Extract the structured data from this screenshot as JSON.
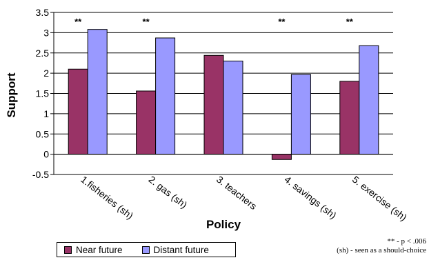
{
  "chart_data": {
    "type": "bar",
    "categories": [
      "1.fisheries (sh)",
      "2. gas (sh)",
      "3. teachers",
      "4. savings (sh)",
      "5. exercise (sh)"
    ],
    "series": [
      {
        "name": "Near future",
        "values": [
          2.1,
          1.56,
          2.44,
          -0.13,
          1.8
        ]
      },
      {
        "name": "Distant future",
        "values": [
          3.08,
          2.87,
          2.3,
          1.97,
          2.68
        ]
      }
    ],
    "significance": [
      "**",
      "**",
      "",
      "**",
      "**"
    ],
    "xlabel": "Policy",
    "ylabel": "Support",
    "ylim": [
      -0.5,
      3.5
    ],
    "yticks": [
      "-0.5",
      "0",
      "0.5",
      "1",
      "1.5",
      "2",
      "2.5",
      "3",
      "3.5"
    ],
    "grid": true,
    "legend_position": "bottom-left",
    "colors": {
      "near": "#993366",
      "distant": "#9999ff",
      "edge": "#000000"
    }
  },
  "notes": {
    "significance": "** - p < .006",
    "should_choice": "(sh) - seen as a should-choice"
  }
}
